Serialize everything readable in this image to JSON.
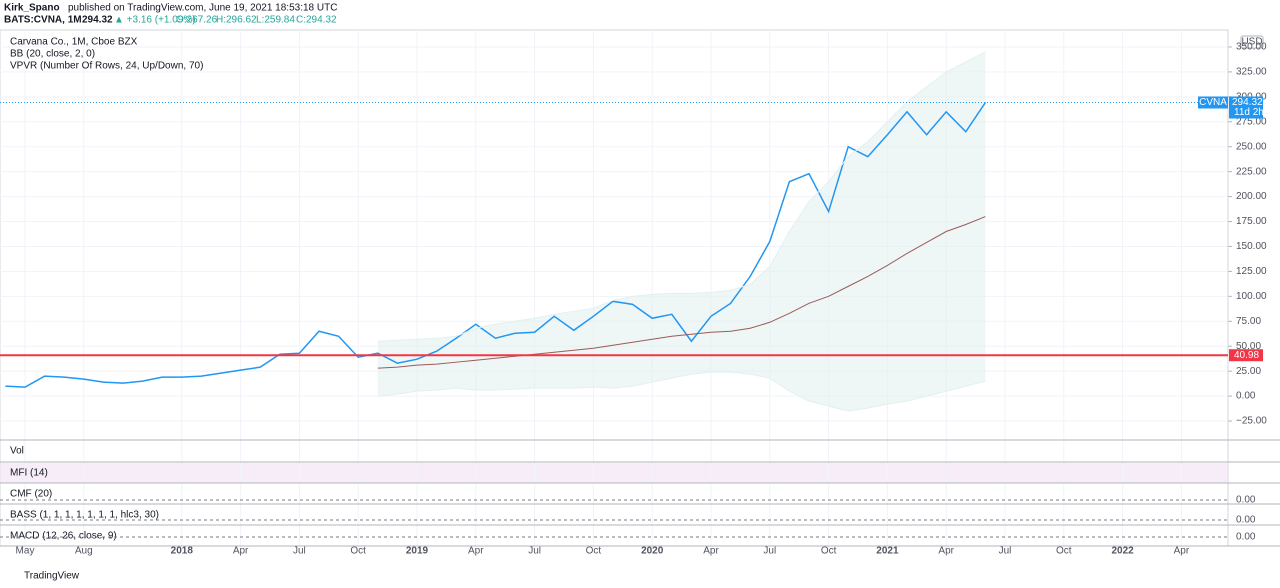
{
  "header": {
    "author": "Kirk_Spano",
    "published": "published on TradingView.com, June 19, 2021 18:53:18 UTC",
    "symbol": "BATS:CVNA, 1M",
    "last": "294.32",
    "change": "▲ +3.16 (+1.09%)",
    "ohlc": [
      "O:267.26",
      "H:296.62",
      "L:259.84",
      "C:294.32"
    ],
    "legend": [
      "Carvana Co., 1M, Cboe BZX",
      "BB (20, close, 2, 0)",
      "VPVR (Number Of Rows, 24, Up/Down, 70)"
    ],
    "currency": "USD",
    "footer": "TradingView"
  },
  "chart_data": {
    "type": "line",
    "categories": [
      null,
      "May",
      null,
      null,
      "Aug",
      null,
      null,
      null,
      null,
      "2018",
      null,
      null,
      "Apr",
      null,
      null,
      "Jul",
      null,
      null,
      "Oct",
      null,
      null,
      "2019",
      null,
      null,
      "Apr",
      null,
      null,
      "Jul",
      null,
      null,
      "Oct",
      null,
      null,
      "2020",
      null,
      null,
      "Apr",
      null,
      null,
      "Jul",
      null,
      null,
      "Oct",
      null,
      null,
      "2021",
      null,
      null,
      "Apr",
      null,
      null,
      "Jul",
      null,
      null,
      "Oct",
      null,
      null,
      "2022",
      null,
      null,
      "Apr",
      null,
      null
    ],
    "series": [
      {
        "name": "CVNA",
        "color": "#2196f3",
        "values": [
          10,
          9,
          20,
          19,
          17,
          14,
          13,
          15,
          19,
          19,
          20,
          23,
          26,
          29,
          42,
          43,
          65,
          60,
          39,
          43,
          33,
          37,
          45,
          58,
          72,
          58,
          63,
          64,
          80,
          66,
          80,
          95,
          92,
          78,
          82,
          55,
          80,
          93,
          120,
          155,
          215,
          223,
          185,
          250,
          240,
          262,
          285,
          262,
          285,
          265,
          294.32,
          null,
          null,
          null,
          null,
          null,
          null,
          null,
          null,
          null,
          null,
          null,
          null
        ]
      },
      {
        "name": "BB basis",
        "color": "#9c5a5a",
        "values": [
          null,
          null,
          null,
          null,
          null,
          null,
          null,
          null,
          null,
          null,
          null,
          null,
          null,
          null,
          null,
          null,
          null,
          null,
          null,
          28,
          29,
          31,
          32,
          34,
          36,
          38,
          40,
          42,
          44,
          46,
          48,
          51,
          54,
          57,
          60,
          62,
          64,
          65,
          68,
          74,
          83,
          93,
          100,
          110,
          120,
          131,
          143,
          154,
          165,
          172,
          180,
          null,
          null,
          null,
          null,
          null,
          null,
          null,
          null,
          null,
          null,
          null,
          null
        ]
      },
      {
        "name": "BB upper",
        "color": "#e3f0f0",
        "values": [
          null,
          null,
          null,
          null,
          null,
          null,
          null,
          null,
          null,
          null,
          null,
          null,
          null,
          null,
          null,
          null,
          null,
          null,
          null,
          55,
          56,
          57,
          58,
          60,
          68,
          72,
          75,
          78,
          82,
          85,
          88,
          96,
          100,
          102,
          103,
          103,
          104,
          106,
          112,
          130,
          165,
          195,
          215,
          240,
          255,
          275,
          295,
          310,
          325,
          335,
          345,
          null,
          null,
          null,
          null,
          null,
          null,
          null,
          null,
          null,
          null,
          null,
          null
        ]
      },
      {
        "name": "BB lower",
        "color": "#e3f0f0",
        "values": [
          null,
          null,
          null,
          null,
          null,
          null,
          null,
          null,
          null,
          null,
          null,
          null,
          null,
          null,
          null,
          null,
          null,
          null,
          null,
          0,
          2,
          5,
          6,
          8,
          6,
          6,
          7,
          8,
          8,
          8,
          9,
          8,
          10,
          14,
          18,
          22,
          24,
          24,
          22,
          18,
          5,
          -5,
          -10,
          -15,
          -12,
          -8,
          -5,
          0,
          5,
          10,
          15,
          null,
          null,
          null,
          null,
          null,
          null,
          null,
          null,
          null,
          null,
          null,
          null
        ]
      }
    ],
    "ylim": [
      -44,
      367
    ],
    "yticks": [
      {
        "value": -25,
        "label": "−25.00"
      },
      {
        "value": 0,
        "label": "0.00"
      },
      {
        "value": 25,
        "label": "25.00"
      },
      {
        "value": 50,
        "label": "50.00"
      },
      {
        "value": 75,
        "label": "75.00"
      },
      {
        "value": 100,
        "label": "100.00"
      },
      {
        "value": 125,
        "label": "125.00"
      },
      {
        "value": 150,
        "label": "150.00"
      },
      {
        "value": 175,
        "label": "175.00"
      },
      {
        "value": 200,
        "label": "200.00"
      },
      {
        "value": 225,
        "label": "225.00"
      },
      {
        "value": 250,
        "label": "250.00"
      },
      {
        "value": 275,
        "label": "275.00"
      },
      {
        "value": 300,
        "label": "300.00"
      },
      {
        "value": 325,
        "label": "325.00"
      },
      {
        "value": 350,
        "label": "350.00"
      }
    ],
    "grid": true,
    "lines": [
      {
        "value": 40.98,
        "label": "40.98",
        "color": "#f23645"
      },
      {
        "value": 294.32,
        "label": "294.32",
        "name": "CVNA",
        "note": "11d 2h",
        "color": "#2196f3"
      }
    ],
    "panes": [
      {
        "label": "Vol"
      },
      {
        "label": "MFI (14)"
      },
      {
        "label": "CMF (20)",
        "ytick": {
          "value": 0,
          "label": "0.00"
        }
      },
      {
        "label": "BASS (1, 1, 1, 1, 1, 1, 1, hlc3, 30)",
        "ytick": {
          "value": 0,
          "label": "0.00"
        }
      },
      {
        "label": "MACD (12, 26, close, 9)",
        "ytick": {
          "value": 0,
          "label": "0.00"
        }
      }
    ]
  }
}
